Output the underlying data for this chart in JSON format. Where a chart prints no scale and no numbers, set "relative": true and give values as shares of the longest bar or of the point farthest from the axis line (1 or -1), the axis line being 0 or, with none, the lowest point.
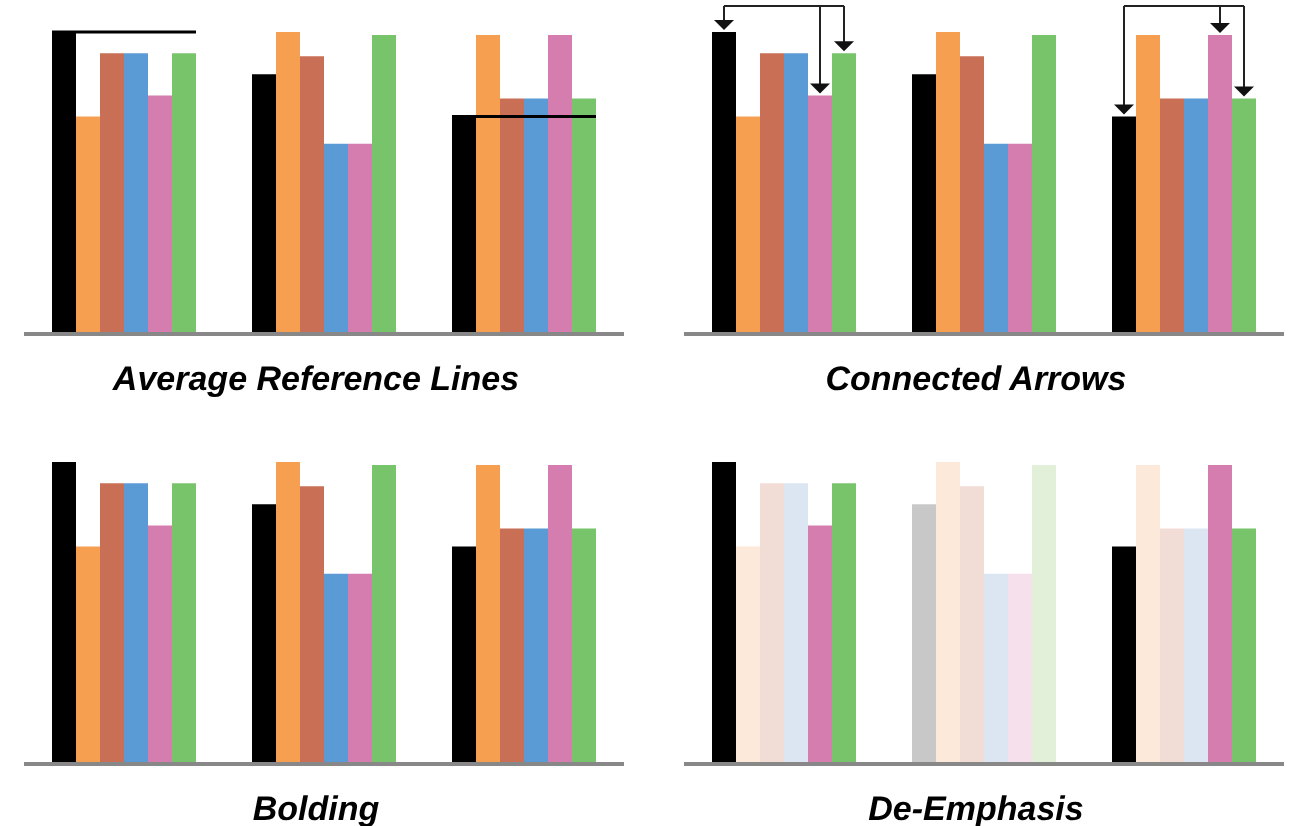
{
  "chart_data": [
    {
      "type": "bar",
      "title": "Average Reference Lines",
      "categories": [
        null,
        null,
        null
      ],
      "relative": true,
      "ref_lines": [
        {
          "axis": "y",
          "value": 1.0,
          "color": "#000000"
        },
        {
          "axis": "y",
          "value": 0.72,
          "color": "#000000"
        }
      ],
      "series": [
        {
          "color": "#000000",
          "values": [
            1.0,
            0.86,
            0.72
          ]
        },
        {
          "color": "#f79f50",
          "values": [
            0.72,
            1.0,
            0.99
          ]
        },
        {
          "color": "#c96f55",
          "values": [
            0.93,
            0.92,
            0.78
          ]
        },
        {
          "color": "#5b9bd5",
          "values": [
            0.93,
            0.63,
            0.78
          ]
        },
        {
          "color": "#d67db0",
          "values": [
            0.79,
            0.63,
            0.99
          ]
        },
        {
          "color": "#77c46a",
          "values": [
            0.93,
            0.99,
            0.78
          ]
        }
      ]
    },
    {
      "type": "bar",
      "title": "Connected Arrows",
      "categories": [
        null,
        null,
        null
      ],
      "relative": true,
      "series": [
        {
          "color": "#000000",
          "values": [
            1.0,
            0.86,
            0.72
          ]
        },
        {
          "color": "#f79f50",
          "values": [
            0.72,
            1.0,
            0.99
          ]
        },
        {
          "color": "#c96f55",
          "values": [
            0.93,
            0.92,
            0.78
          ]
        },
        {
          "color": "#5b9bd5",
          "values": [
            0.93,
            0.63,
            0.78
          ]
        },
        {
          "color": "#d67db0",
          "values": [
            0.79,
            0.63,
            0.99
          ]
        },
        {
          "color": "#77c46a",
          "values": [
            0.93,
            0.99,
            0.78
          ]
        }
      ]
    },
    {
      "type": "bar",
      "title": "Bolding",
      "categories": [
        null,
        null,
        null
      ],
      "relative": true,
      "series": [
        {
          "color": "#000000",
          "values": [
            1.0,
            0.86,
            0.72
          ]
        },
        {
          "color": "#f79f50",
          "values": [
            0.72,
            1.0,
            0.99
          ]
        },
        {
          "color": "#c96f55",
          "values": [
            0.93,
            0.92,
            0.78
          ]
        },
        {
          "color": "#5b9bd5",
          "values": [
            0.93,
            0.63,
            0.78
          ]
        },
        {
          "color": "#d67db0",
          "values": [
            0.79,
            0.63,
            0.99
          ]
        },
        {
          "color": "#77c46a",
          "values": [
            0.93,
            0.99,
            0.78
          ]
        }
      ]
    },
    {
      "type": "bar",
      "title": "De-Emphasis",
      "categories": [
        null,
        null,
        null
      ],
      "relative": true,
      "series": [
        {
          "colors": [
            "#000000",
            "#c8c8c8",
            "#000000"
          ],
          "values": [
            1.0,
            0.86,
            0.72
          ]
        },
        {
          "colors": [
            "#fde9d9",
            "#fde9d9",
            "#fde9d9"
          ],
          "values": [
            0.72,
            1.0,
            0.99
          ]
        },
        {
          "colors": [
            "#f2dcd6",
            "#f2dcd6",
            "#f2dcd6"
          ],
          "values": [
            0.93,
            0.92,
            0.78
          ]
        },
        {
          "colors": [
            "#dce6f2",
            "#dce6f2",
            "#dce6f2"
          ],
          "values": [
            0.93,
            0.63,
            0.78
          ]
        },
        {
          "colors": [
            "#d67db0",
            "#f5e0ec",
            "#d67db0"
          ],
          "values": [
            0.79,
            0.63,
            0.99
          ]
        },
        {
          "colors": [
            "#77c46a",
            "#e2f0d9",
            "#77c46a"
          ],
          "values": [
            0.93,
            0.99,
            0.78
          ]
        }
      ]
    }
  ]
}
